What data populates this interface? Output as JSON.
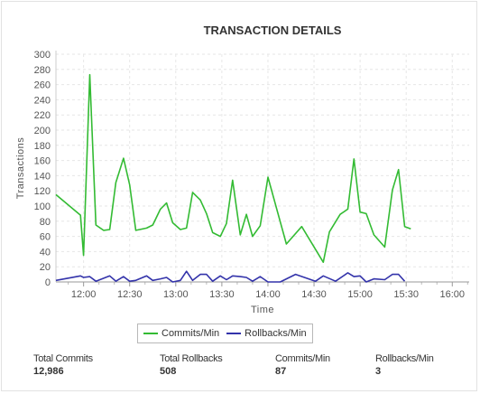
{
  "chart_data": {
    "type": "line",
    "title": "TRANSACTION DETAILS",
    "xlabel": "Time",
    "ylabel": "Transactions",
    "ylim": [
      0,
      300
    ],
    "yticks": [
      0,
      20,
      40,
      60,
      80,
      100,
      120,
      140,
      160,
      180,
      200,
      220,
      240,
      260,
      280,
      300
    ],
    "xlim": [
      "11:42",
      "16:11"
    ],
    "xticks": [
      "12:00",
      "12:30",
      "13:00",
      "13:30",
      "14:00",
      "14:30",
      "15:00",
      "15:30",
      "16:00"
    ],
    "grid": true,
    "legend_position": "bottom",
    "series": [
      {
        "name": "Commits/Min",
        "color": "#33bb33",
        "points": [
          [
            "11:42",
            115
          ],
          [
            "11:58",
            88
          ],
          [
            "12:00",
            35
          ],
          [
            "12:04",
            273
          ],
          [
            "12:08",
            75
          ],
          [
            "12:13",
            68
          ],
          [
            "12:17",
            69
          ],
          [
            "12:21",
            131
          ],
          [
            "12:26",
            163
          ],
          [
            "12:30",
            128
          ],
          [
            "12:34",
            68
          ],
          [
            "12:41",
            71
          ],
          [
            "12:45",
            75
          ],
          [
            "12:50",
            96
          ],
          [
            "12:54",
            104
          ],
          [
            "12:58",
            78
          ],
          [
            "13:03",
            69
          ],
          [
            "13:07",
            71
          ],
          [
            "13:11",
            118
          ],
          [
            "13:16",
            108
          ],
          [
            "13:20",
            90
          ],
          [
            "13:24",
            65
          ],
          [
            "13:29",
            60
          ],
          [
            "13:33",
            77
          ],
          [
            "13:37",
            134
          ],
          [
            "13:42",
            62
          ],
          [
            "13:46",
            89
          ],
          [
            "13:50",
            60
          ],
          [
            "13:55",
            74
          ],
          [
            "14:00",
            138
          ],
          [
            "14:12",
            50
          ],
          [
            "14:22",
            73
          ],
          [
            "14:36",
            26
          ],
          [
            "14:40",
            66
          ],
          [
            "14:47",
            89
          ],
          [
            "14:52",
            96
          ],
          [
            "14:56",
            162
          ],
          [
            "15:00",
            92
          ],
          [
            "15:04",
            90
          ],
          [
            "15:09",
            62
          ],
          [
            "15:16",
            46
          ],
          [
            "15:21",
            121
          ],
          [
            "15:25",
            148
          ],
          [
            "15:29",
            73
          ],
          [
            "15:33",
            70
          ]
        ]
      },
      {
        "name": "Rollbacks/Min",
        "color": "#3333aa",
        "points": [
          [
            "11:42",
            2
          ],
          [
            "11:58",
            8
          ],
          [
            "12:00",
            6
          ],
          [
            "12:04",
            7
          ],
          [
            "12:08",
            1
          ],
          [
            "12:17",
            8
          ],
          [
            "12:21",
            1
          ],
          [
            "12:26",
            7
          ],
          [
            "12:30",
            1
          ],
          [
            "12:34",
            2
          ],
          [
            "12:41",
            8
          ],
          [
            "12:45",
            2
          ],
          [
            "12:50",
            4
          ],
          [
            "12:54",
            6
          ],
          [
            "12:58",
            0
          ],
          [
            "13:03",
            2
          ],
          [
            "13:07",
            14
          ],
          [
            "13:11",
            2
          ],
          [
            "13:16",
            10
          ],
          [
            "13:20",
            10
          ],
          [
            "13:24",
            1
          ],
          [
            "13:29",
            8
          ],
          [
            "13:33",
            3
          ],
          [
            "13:37",
            8
          ],
          [
            "13:42",
            7
          ],
          [
            "13:46",
            6
          ],
          [
            "13:50",
            1
          ],
          [
            "13:55",
            7
          ],
          [
            "14:00",
            0
          ],
          [
            "14:08",
            0
          ],
          [
            "14:18",
            10
          ],
          [
            "14:31",
            1
          ],
          [
            "14:36",
            8
          ],
          [
            "14:44",
            1
          ],
          [
            "14:52",
            12
          ],
          [
            "14:56",
            7
          ],
          [
            "15:00",
            8
          ],
          [
            "15:04",
            0
          ],
          [
            "15:09",
            4
          ],
          [
            "15:16",
            3
          ],
          [
            "15:21",
            10
          ],
          [
            "15:25",
            10
          ],
          [
            "15:29",
            1
          ]
        ]
      }
    ]
  },
  "legend": {
    "commits": "Commits/Min",
    "rollbacks": "Rollbacks/Min"
  },
  "stats": [
    {
      "label": "Total Commits",
      "value": "12,986"
    },
    {
      "label": "Total Rollbacks",
      "value": "508"
    },
    {
      "label": "Commits/Min",
      "value": "87"
    },
    {
      "label": "Rollbacks/Min",
      "value": "3"
    }
  ]
}
